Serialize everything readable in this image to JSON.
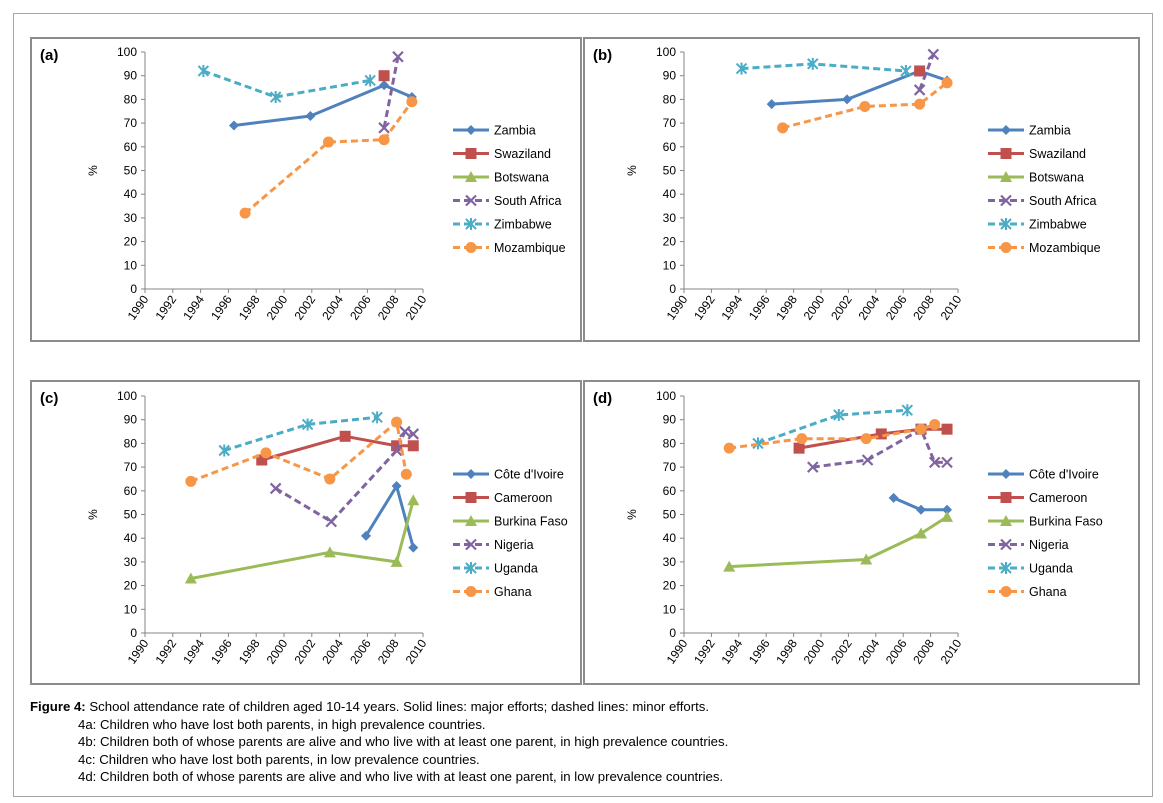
{
  "figure": {
    "caption_label": "Figure 4:",
    "caption_text": " School attendance rate of children aged 10-14 years. Solid lines: major efforts; dashed lines: minor efforts.",
    "sub_captions": [
      "4a: Children who have lost both parents, in high prevalence countries.",
      "4b: Children both of whose parents are alive and who live with at least one parent, in high prevalence countries.",
      "4c: Children who have lost both parents, in low prevalence countries.",
      "4d: Children both of whose parents are alive and who live with at least one parent, in low prevalence countries."
    ]
  },
  "chart_data": [
    {
      "type": "line",
      "panel_label": "(a)",
      "ylabel": "%",
      "xlabel": "",
      "xlim": [
        1990,
        2010
      ],
      "ylim": [
        0,
        100
      ],
      "x_ticks": [
        "1990",
        "1992",
        "1994",
        "1996",
        "1998",
        "2000",
        "2002",
        "2004",
        "2006",
        "2008",
        "2010"
      ],
      "y_ticks": [
        "0",
        "10",
        "20",
        "30",
        "40",
        "50",
        "60",
        "70",
        "80",
        "90",
        "100"
      ],
      "legend_position": "right",
      "series": [
        {
          "name": "Zambia",
          "color": "#4f81bd",
          "marker": "diamond",
          "dash": false,
          "points": [
            [
              1996.4,
              69
            ],
            [
              2001.9,
              73
            ],
            [
              2007.2,
              86
            ],
            [
              2009.2,
              81
            ]
          ]
        },
        {
          "name": "Swaziland",
          "color": "#c0504d",
          "marker": "square",
          "dash": false,
          "points": [
            [
              2007.2,
              90
            ]
          ]
        },
        {
          "name": "Botswana",
          "color": "#9bbb59",
          "marker": "triangle",
          "dash": false,
          "points": []
        },
        {
          "name": "South Africa",
          "color": "#8064a2",
          "marker": "x",
          "dash": true,
          "points": [
            [
              2007.2,
              68
            ],
            [
              2008.2,
              98
            ]
          ]
        },
        {
          "name": "Zimbabwe",
          "color": "#4bacc6",
          "marker": "star",
          "dash": true,
          "points": [
            [
              1994.2,
              92
            ],
            [
              1999.4,
              81
            ],
            [
              2006.2,
              88
            ]
          ]
        },
        {
          "name": "Mozambique",
          "color": "#f79646",
          "marker": "circle",
          "dash": true,
          "points": [
            [
              1997.2,
              32
            ],
            [
              2003.2,
              62
            ],
            [
              2007.2,
              63
            ],
            [
              2009.2,
              79
            ]
          ]
        }
      ]
    },
    {
      "type": "line",
      "panel_label": "(b)",
      "ylabel": "%",
      "xlabel": "",
      "xlim": [
        1990,
        2010
      ],
      "ylim": [
        0,
        100
      ],
      "x_ticks": [
        "1990",
        "1992",
        "1994",
        "1996",
        "1998",
        "2000",
        "2002",
        "2004",
        "2006",
        "2008",
        "2010"
      ],
      "y_ticks": [
        "0",
        "10",
        "20",
        "30",
        "40",
        "50",
        "60",
        "70",
        "80",
        "90",
        "100"
      ],
      "legend_position": "right",
      "series": [
        {
          "name": "Zambia",
          "color": "#4f81bd",
          "marker": "diamond",
          "dash": false,
          "points": [
            [
              1996.4,
              78
            ],
            [
              2001.9,
              80
            ],
            [
              2007.2,
              92
            ],
            [
              2009.2,
              88
            ]
          ]
        },
        {
          "name": "Swaziland",
          "color": "#c0504d",
          "marker": "square",
          "dash": false,
          "points": [
            [
              2007.2,
              92
            ]
          ]
        },
        {
          "name": "Botswana",
          "color": "#9bbb59",
          "marker": "triangle",
          "dash": false,
          "points": []
        },
        {
          "name": "South Africa",
          "color": "#8064a2",
          "marker": "x",
          "dash": true,
          "points": [
            [
              2007.2,
              84
            ],
            [
              2008.2,
              99
            ]
          ]
        },
        {
          "name": "Zimbabwe",
          "color": "#4bacc6",
          "marker": "star",
          "dash": true,
          "points": [
            [
              1994.2,
              93
            ],
            [
              1999.4,
              95
            ],
            [
              2006.2,
              92
            ]
          ]
        },
        {
          "name": "Mozambique",
          "color": "#f79646",
          "marker": "circle",
          "dash": true,
          "points": [
            [
              1997.2,
              68
            ],
            [
              2003.2,
              77
            ],
            [
              2007.2,
              78
            ],
            [
              2009.2,
              87
            ]
          ]
        }
      ]
    },
    {
      "type": "line",
      "panel_label": "(c)",
      "ylabel": "%",
      "xlabel": "",
      "xlim": [
        1990,
        2010
      ],
      "ylim": [
        0,
        100
      ],
      "x_ticks": [
        "1990",
        "1992",
        "1994",
        "1996",
        "1998",
        "2000",
        "2002",
        "2004",
        "2006",
        "2008",
        "2010"
      ],
      "y_ticks": [
        "0",
        "10",
        "20",
        "30",
        "40",
        "50",
        "60",
        "70",
        "80",
        "90",
        "100"
      ],
      "legend_position": "right",
      "series": [
        {
          "name": "Côte d'Ivoire",
          "color": "#4f81bd",
          "marker": "diamond",
          "dash": false,
          "points": [
            [
              2005.9,
              41
            ],
            [
              2008.1,
              62
            ],
            [
              2009.3,
              36
            ]
          ]
        },
        {
          "name": "Cameroon",
          "color": "#c0504d",
          "marker": "square",
          "dash": false,
          "points": [
            [
              1998.4,
              73
            ],
            [
              2004.4,
              83
            ],
            [
              2008.1,
              79
            ],
            [
              2009.3,
              79
            ]
          ]
        },
        {
          "name": "Burkina Faso",
          "color": "#9bbb59",
          "marker": "triangle",
          "dash": false,
          "points": [
            [
              1993.3,
              23
            ],
            [
              2003.3,
              34
            ],
            [
              2008.1,
              30
            ],
            [
              2009.3,
              56
            ]
          ]
        },
        {
          "name": "Nigeria",
          "color": "#8064a2",
          "marker": "x",
          "dash": true,
          "points": [
            [
              1999.4,
              61
            ],
            [
              2003.4,
              47
            ],
            [
              2008.1,
              77
            ],
            [
              2008.7,
              85
            ],
            [
              2009.3,
              84
            ]
          ]
        },
        {
          "name": "Uganda",
          "color": "#4bacc6",
          "marker": "star",
          "dash": true,
          "points": [
            [
              1995.7,
              77
            ],
            [
              2001.7,
              88
            ],
            [
              2006.7,
              91
            ]
          ]
        },
        {
          "name": "Ghana",
          "color": "#f79646",
          "marker": "circle",
          "dash": true,
          "points": [
            [
              1993.3,
              64
            ],
            [
              1998.7,
              76
            ],
            [
              2003.3,
              65
            ],
            [
              2008.1,
              89
            ],
            [
              2008.8,
              67
            ]
          ]
        }
      ]
    },
    {
      "type": "line",
      "panel_label": "(d)",
      "ylabel": "%",
      "xlabel": "",
      "xlim": [
        1990,
        2010
      ],
      "ylim": [
        0,
        100
      ],
      "x_ticks": [
        "1990",
        "1992",
        "1994",
        "1996",
        "1998",
        "2000",
        "2002",
        "2004",
        "2006",
        "2008",
        "2010"
      ],
      "y_ticks": [
        "0",
        "10",
        "20",
        "30",
        "40",
        "50",
        "60",
        "70",
        "80",
        "90",
        "100"
      ],
      "legend_position": "right",
      "series": [
        {
          "name": "Côte d'Ivoire",
          "color": "#4f81bd",
          "marker": "diamond",
          "dash": false,
          "points": [
            [
              2005.3,
              57
            ],
            [
              2007.3,
              52
            ],
            [
              2009.2,
              52
            ]
          ]
        },
        {
          "name": "Cameroon",
          "color": "#c0504d",
          "marker": "square",
          "dash": false,
          "points": [
            [
              1998.4,
              78
            ],
            [
              2004.4,
              84
            ],
            [
              2007.3,
              86
            ],
            [
              2009.2,
              86
            ]
          ]
        },
        {
          "name": "Burkina Faso",
          "color": "#9bbb59",
          "marker": "triangle",
          "dash": false,
          "points": [
            [
              1993.3,
              28
            ],
            [
              2003.3,
              31
            ],
            [
              2007.3,
              42
            ],
            [
              2009.2,
              49
            ]
          ]
        },
        {
          "name": "Nigeria",
          "color": "#8064a2",
          "marker": "x",
          "dash": true,
          "points": [
            [
              1999.4,
              70
            ],
            [
              2003.4,
              73
            ],
            [
              2007.3,
              86
            ],
            [
              2008.3,
              72
            ],
            [
              2009.2,
              72
            ]
          ]
        },
        {
          "name": "Uganda",
          "color": "#4bacc6",
          "marker": "star",
          "dash": true,
          "points": [
            [
              1995.4,
              80
            ],
            [
              2001.3,
              92
            ],
            [
              2006.3,
              94
            ]
          ]
        },
        {
          "name": "Ghana",
          "color": "#f79646",
          "marker": "circle",
          "dash": true,
          "points": [
            [
              1993.3,
              78
            ],
            [
              1998.6,
              82
            ],
            [
              2003.3,
              82
            ],
            [
              2007.3,
              86
            ],
            [
              2008.3,
              88
            ]
          ]
        }
      ]
    }
  ]
}
